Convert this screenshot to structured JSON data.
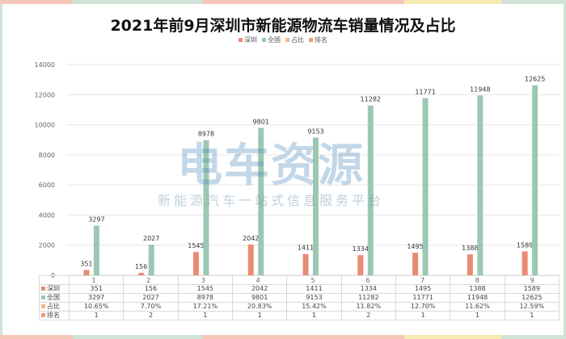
{
  "title": "2021年前9月深圳市新能源物流车销量情况及占比",
  "watermark": {
    "main": "电车资源",
    "sub": "新能源汽车一站式信息服务平台"
  },
  "colors": {
    "shenzhen": "#e98b74",
    "national": "#9cc8b2",
    "share": "#f3b68a",
    "rank": "#f09a7c",
    "frame_segments": [
      "#f4c7b9",
      "#cfe3d6",
      "#f4c7b9",
      "#f6ecb0",
      "#cfe3d6"
    ]
  },
  "legend": [
    {
      "label": "深圳",
      "color_key": "shenzhen"
    },
    {
      "label": "全国",
      "color_key": "national"
    },
    {
      "label": "占比",
      "color_key": "share"
    },
    {
      "label": "排名",
      "color_key": "rank"
    }
  ],
  "chart_data": {
    "type": "bar",
    "categories": [
      "1",
      "2",
      "3",
      "4",
      "5",
      "6",
      "7",
      "8",
      "9"
    ],
    "series": [
      {
        "name": "深圳",
        "values": [
          351,
          156,
          1545,
          2042,
          1411,
          1334,
          1495,
          1388,
          1589
        ]
      },
      {
        "name": "全国",
        "values": [
          3297,
          2027,
          8978,
          9801,
          9153,
          11282,
          11771,
          11948,
          12625
        ]
      }
    ],
    "yticks": [
      "0",
      "2000",
      "4000",
      "6000",
      "8000",
      "10000",
      "12000",
      "14000"
    ],
    "ylim": [
      0,
      14000
    ],
    "grid": true,
    "legend_position": "top-center"
  },
  "table": {
    "rows": [
      {
        "label": "深圳",
        "color_key": "shenzhen",
        "cells": [
          "351",
          "156",
          "1545",
          "2042",
          "1411",
          "1334",
          "1495",
          "1388",
          "1589"
        ]
      },
      {
        "label": "全国",
        "color_key": "national",
        "cells": [
          "3297",
          "2027",
          "8978",
          "9801",
          "9153",
          "11282",
          "11771",
          "11948",
          "12625"
        ]
      },
      {
        "label": "占比",
        "color_key": "share",
        "cells": [
          "10.65%",
          "7.70%",
          "17.21%",
          "20.83%",
          "15.42%",
          "11.82%",
          "12.70%",
          "11.62%",
          "12.59%"
        ]
      },
      {
        "label": "排名",
        "color_key": "rank",
        "cells": [
          "1",
          "2",
          "1",
          "1",
          "1",
          "2",
          "1",
          "1",
          "1"
        ]
      }
    ]
  }
}
